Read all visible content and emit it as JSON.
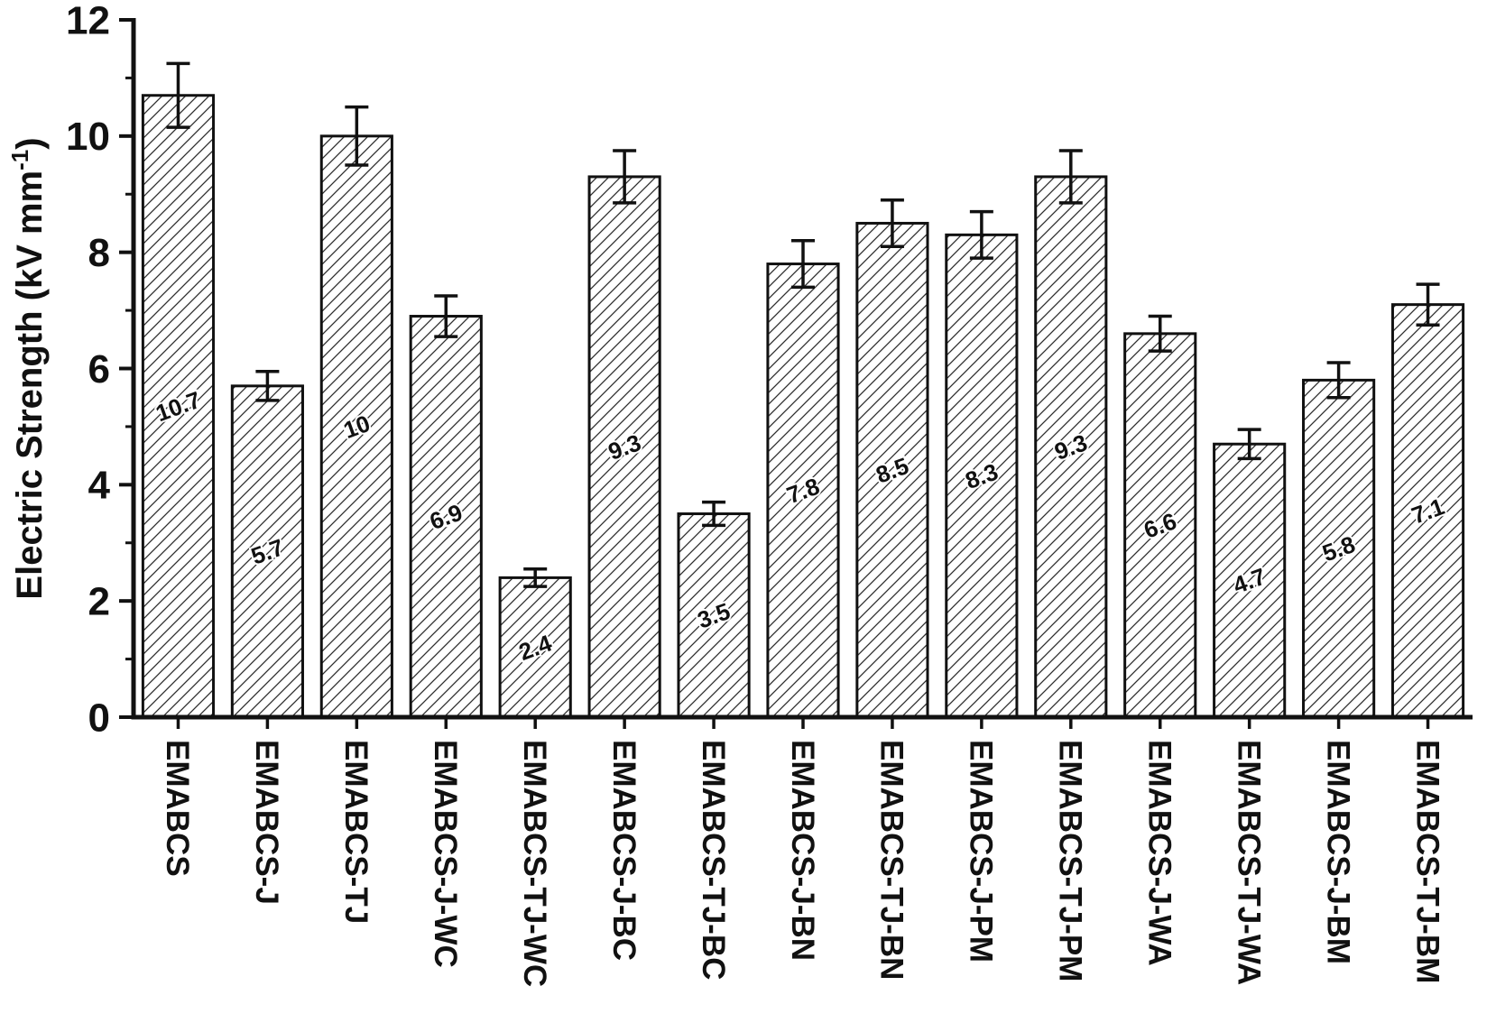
{
  "chart_data": {
    "type": "bar",
    "title": "",
    "xlabel": "",
    "ylabel": "Electric Strength (kV mm⁻¹)",
    "ylabel_parts": {
      "main": "Electric Strength (kV mm",
      "sup": "-1",
      "close": ")"
    },
    "ylim": [
      0,
      12
    ],
    "yticks": [
      0,
      2,
      4,
      6,
      8,
      10,
      12
    ],
    "minor_yticks": [
      1,
      3,
      5,
      7,
      9,
      11
    ],
    "grid": false,
    "legend": null,
    "bar_style": {
      "fill": "diagonal-hatch",
      "hatch_color": "#2d2d2d",
      "edge_color": "#111111",
      "background": "#ffffff"
    },
    "axis_color": "#111111",
    "text_color": "#111111",
    "categories": [
      "EMABCS",
      "EMABCS-J",
      "EMABCS-TJ",
      "EMABCS-J-WC",
      "EMABCS-TJ-WC",
      "EMABCS-J-BC",
      "EMABCS-TJ-BC",
      "EMABCS-J-BN",
      "EMABCS-TJ-BN",
      "EMABCS-J-PM",
      "EMABCS-TJ-PM",
      "EMABCS-J-WA",
      "EMABCS-TJ-WA",
      "EMABCS-J-BM",
      "EMABCS-TJ-BM"
    ],
    "values": [
      10.7,
      5.7,
      10,
      6.9,
      2.4,
      9.3,
      3.5,
      7.8,
      8.5,
      8.3,
      9.3,
      6.6,
      4.7,
      5.8,
      7.1
    ],
    "errors": [
      0.55,
      0.25,
      0.5,
      0.35,
      0.15,
      0.45,
      0.2,
      0.4,
      0.4,
      0.4,
      0.45,
      0.3,
      0.25,
      0.3,
      0.35
    ],
    "bar_labels": [
      "10.7",
      "5.7",
      "10",
      "6.9",
      "2.4",
      "9.3",
      "3.5",
      "7.8",
      "8.5",
      "8.3",
      "9.3",
      "6.6",
      "4.7",
      "5.8",
      "7.1"
    ]
  }
}
